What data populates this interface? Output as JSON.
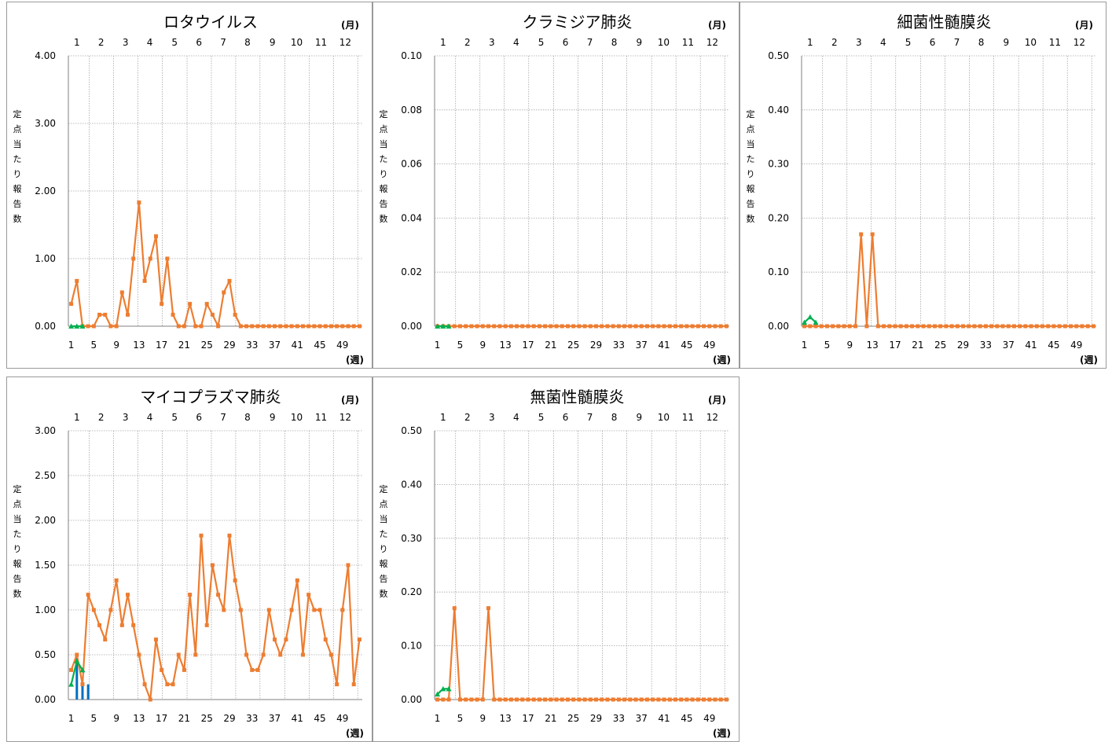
{
  "page": {
    "background": "#ffffff"
  },
  "colors": {
    "current": "#ed7d31",
    "prior": "#00b050",
    "bars": "#0070c0",
    "grid": "#a6a6a6",
    "axis": "#808080",
    "frame": "#9a9a9a"
  },
  "chart_data": [
    {
      "type": "line",
      "title": "ロタウイルス",
      "ylabel": "定点当たり報告数",
      "month_unit": "(月)",
      "week_unit": "(週)",
      "ylim": [
        0,
        4
      ],
      "yticks": [
        "0.00",
        "1.00",
        "2.00",
        "3.00",
        "4.00"
      ],
      "xticks": [
        "1",
        "5",
        "9",
        "13",
        "17",
        "21",
        "25",
        "29",
        "33",
        "37",
        "41",
        "45",
        "49"
      ],
      "months": [
        "1",
        "2",
        "3",
        "4",
        "5",
        "6",
        "7",
        "8",
        "9",
        "10",
        "11",
        "12"
      ],
      "series": [
        {
          "role": "current",
          "x": [
            1,
            2,
            3,
            4,
            5,
            6,
            7,
            8,
            9,
            10,
            11,
            12,
            13,
            14,
            15,
            16,
            17,
            18,
            19,
            20,
            21,
            22,
            23,
            24,
            25,
            26,
            27,
            28,
            29,
            30,
            31,
            32,
            33,
            34,
            35,
            36,
            37,
            38,
            39,
            40,
            41,
            42,
            43,
            44,
            45,
            46,
            47,
            48,
            49,
            50,
            51,
            52
          ],
          "values": [
            0.33,
            0.67,
            0,
            0,
            0,
            0.17,
            0.17,
            0,
            0,
            0.5,
            0.17,
            1.0,
            1.83,
            0.67,
            1.0,
            1.33,
            0.33,
            1.0,
            0.17,
            0,
            0,
            0.33,
            0,
            0,
            0.33,
            0.17,
            0,
            0.5,
            0.67,
            0.17,
            0,
            0,
            0,
            0,
            0,
            0,
            0,
            0,
            0,
            0,
            0,
            0,
            0,
            0,
            0,
            0,
            0,
            0,
            0,
            0,
            0,
            0
          ]
        },
        {
          "role": "prior",
          "x": [
            1,
            2,
            3
          ],
          "values": [
            0,
            0,
            0
          ]
        }
      ],
      "bars": {
        "x": [],
        "values": []
      }
    },
    {
      "type": "line",
      "title": "クラミジア肺炎",
      "ylabel": "定点当たり報告数",
      "month_unit": "(月)",
      "week_unit": "(週)",
      "ylim": [
        0,
        0.1
      ],
      "yticks": [
        "0.00",
        "0.02",
        "0.04",
        "0.06",
        "0.08",
        "0.10"
      ],
      "xticks": [
        "1",
        "5",
        "9",
        "13",
        "17",
        "21",
        "25",
        "29",
        "33",
        "37",
        "41",
        "45",
        "49"
      ],
      "months": [
        "1",
        "2",
        "3",
        "4",
        "5",
        "6",
        "7",
        "8",
        "9",
        "10",
        "11",
        "12"
      ],
      "series": [
        {
          "role": "current",
          "x": [
            1,
            2,
            3,
            4,
            5,
            6,
            7,
            8,
            9,
            10,
            11,
            12,
            13,
            14,
            15,
            16,
            17,
            18,
            19,
            20,
            21,
            22,
            23,
            24,
            25,
            26,
            27,
            28,
            29,
            30,
            31,
            32,
            33,
            34,
            35,
            36,
            37,
            38,
            39,
            40,
            41,
            42,
            43,
            44,
            45,
            46,
            47,
            48,
            49,
            50,
            51,
            52
          ],
          "values": [
            0,
            0,
            0,
            0,
            0,
            0,
            0,
            0,
            0,
            0,
            0,
            0,
            0,
            0,
            0,
            0,
            0,
            0,
            0,
            0,
            0,
            0,
            0,
            0,
            0,
            0,
            0,
            0,
            0,
            0,
            0,
            0,
            0,
            0,
            0,
            0,
            0,
            0,
            0,
            0,
            0,
            0,
            0,
            0,
            0,
            0,
            0,
            0,
            0,
            0,
            0,
            0
          ]
        },
        {
          "role": "prior",
          "x": [
            1,
            2,
            3
          ],
          "values": [
            0,
            0,
            0
          ]
        }
      ],
      "bars": {
        "x": [],
        "values": []
      }
    },
    {
      "type": "line",
      "title": "細菌性髄膜炎",
      "ylabel": "定点当たり報告数",
      "month_unit": "(月)",
      "week_unit": "(週)",
      "ylim": [
        0,
        0.5
      ],
      "yticks": [
        "0.00",
        "0.10",
        "0.20",
        "0.30",
        "0.40",
        "0.50"
      ],
      "xticks": [
        "1",
        "5",
        "9",
        "13",
        "17",
        "21",
        "25",
        "29",
        "33",
        "37",
        "41",
        "45",
        "49"
      ],
      "months": [
        "1",
        "2",
        "3",
        "4",
        "5",
        "6",
        "7",
        "8",
        "9",
        "10",
        "11",
        "12"
      ],
      "series": [
        {
          "role": "current",
          "x": [
            1,
            2,
            3,
            4,
            5,
            6,
            7,
            8,
            9,
            10,
            11,
            12,
            13,
            14,
            15,
            16,
            17,
            18,
            19,
            20,
            21,
            22,
            23,
            24,
            25,
            26,
            27,
            28,
            29,
            30,
            31,
            32,
            33,
            34,
            35,
            36,
            37,
            38,
            39,
            40,
            41,
            42,
            43,
            44,
            45,
            46,
            47,
            48,
            49,
            50,
            51,
            52
          ],
          "values": [
            0,
            0,
            0,
            0,
            0,
            0,
            0,
            0,
            0,
            0,
            0.17,
            0,
            0.17,
            0,
            0,
            0,
            0,
            0,
            0,
            0,
            0,
            0,
            0,
            0,
            0,
            0,
            0,
            0,
            0,
            0,
            0,
            0,
            0,
            0,
            0,
            0,
            0,
            0,
            0,
            0,
            0,
            0,
            0,
            0,
            0,
            0,
            0,
            0,
            0,
            0,
            0,
            0
          ]
        },
        {
          "role": "prior",
          "x": [
            1,
            2,
            3
          ],
          "values": [
            0.007,
            0.017,
            0.007
          ]
        }
      ],
      "bars": {
        "x": [],
        "values": []
      }
    },
    {
      "type": "line",
      "title": "マイコプラズマ肺炎",
      "ylabel": "定点当たり報告数",
      "month_unit": "(月)",
      "week_unit": "(週)",
      "ylim": [
        0,
        3
      ],
      "yticks": [
        "0.00",
        "0.50",
        "1.00",
        "1.50",
        "2.00",
        "2.50",
        "3.00"
      ],
      "xticks": [
        "1",
        "5",
        "9",
        "13",
        "17",
        "21",
        "25",
        "29",
        "33",
        "37",
        "41",
        "45",
        "49"
      ],
      "months": [
        "1",
        "2",
        "3",
        "4",
        "5",
        "6",
        "7",
        "8",
        "9",
        "10",
        "11",
        "12"
      ],
      "series": [
        {
          "role": "current",
          "x": [
            1,
            2,
            3,
            4,
            5,
            6,
            7,
            8,
            9,
            10,
            11,
            12,
            13,
            14,
            15,
            16,
            17,
            18,
            19,
            20,
            21,
            22,
            23,
            24,
            25,
            26,
            27,
            28,
            29,
            30,
            31,
            32,
            33,
            34,
            35,
            36,
            37,
            38,
            39,
            40,
            41,
            42,
            43,
            44,
            45,
            46,
            47,
            48,
            49,
            50,
            51,
            52
          ],
          "values": [
            0.33,
            0.5,
            0.17,
            1.17,
            1.0,
            0.83,
            0.67,
            1.0,
            1.33,
            0.83,
            1.17,
            0.83,
            0.5,
            0.17,
            0,
            0.67,
            0.33,
            0.17,
            0.17,
            0.5,
            0.33,
            1.17,
            0.5,
            1.83,
            0.83,
            1.5,
            1.17,
            1.0,
            1.83,
            1.33,
            1.0,
            0.5,
            0.33,
            0.33,
            0.5,
            1.0,
            0.67,
            0.5,
            0.67,
            1.0,
            1.33,
            0.5,
            1.17,
            1.0,
            1.0,
            0.67,
            0.5,
            0.17,
            1.0,
            1.5,
            0.17,
            0.67
          ]
        },
        {
          "role": "prior",
          "x": [
            1,
            2,
            3
          ],
          "values": [
            0.17,
            0.43,
            0.33
          ]
        }
      ],
      "bars": {
        "x": [
          2,
          3,
          4
        ],
        "values": [
          0.5,
          0.17,
          0.17
        ]
      }
    },
    {
      "type": "line",
      "title": "無菌性髄膜炎",
      "ylabel": "定点当たり報告数",
      "month_unit": "(月)",
      "week_unit": "(週)",
      "ylim": [
        0,
        0.5
      ],
      "yticks": [
        "0.00",
        "0.10",
        "0.20",
        "0.30",
        "0.40",
        "0.50"
      ],
      "xticks": [
        "1",
        "5",
        "9",
        "13",
        "17",
        "21",
        "25",
        "29",
        "33",
        "37",
        "41",
        "45",
        "49"
      ],
      "months": [
        "1",
        "2",
        "3",
        "4",
        "5",
        "6",
        "7",
        "8",
        "9",
        "10",
        "11",
        "12"
      ],
      "series": [
        {
          "role": "current",
          "x": [
            1,
            2,
            3,
            4,
            5,
            6,
            7,
            8,
            9,
            10,
            11,
            12,
            13,
            14,
            15,
            16,
            17,
            18,
            19,
            20,
            21,
            22,
            23,
            24,
            25,
            26,
            27,
            28,
            29,
            30,
            31,
            32,
            33,
            34,
            35,
            36,
            37,
            38,
            39,
            40,
            41,
            42,
            43,
            44,
            45,
            46,
            47,
            48,
            49,
            50,
            51,
            52
          ],
          "values": [
            0,
            0,
            0,
            0.17,
            0,
            0,
            0,
            0,
            0,
            0.17,
            0,
            0,
            0,
            0,
            0,
            0,
            0,
            0,
            0,
            0,
            0,
            0,
            0,
            0,
            0,
            0,
            0,
            0,
            0,
            0,
            0,
            0,
            0,
            0,
            0,
            0,
            0,
            0,
            0,
            0,
            0,
            0,
            0,
            0,
            0,
            0,
            0,
            0,
            0,
            0,
            0,
            0
          ]
        },
        {
          "role": "prior",
          "x": [
            1,
            2,
            3
          ],
          "values": [
            0.01,
            0.02,
            0.02
          ]
        }
      ],
      "bars": {
        "x": [],
        "values": []
      }
    }
  ]
}
